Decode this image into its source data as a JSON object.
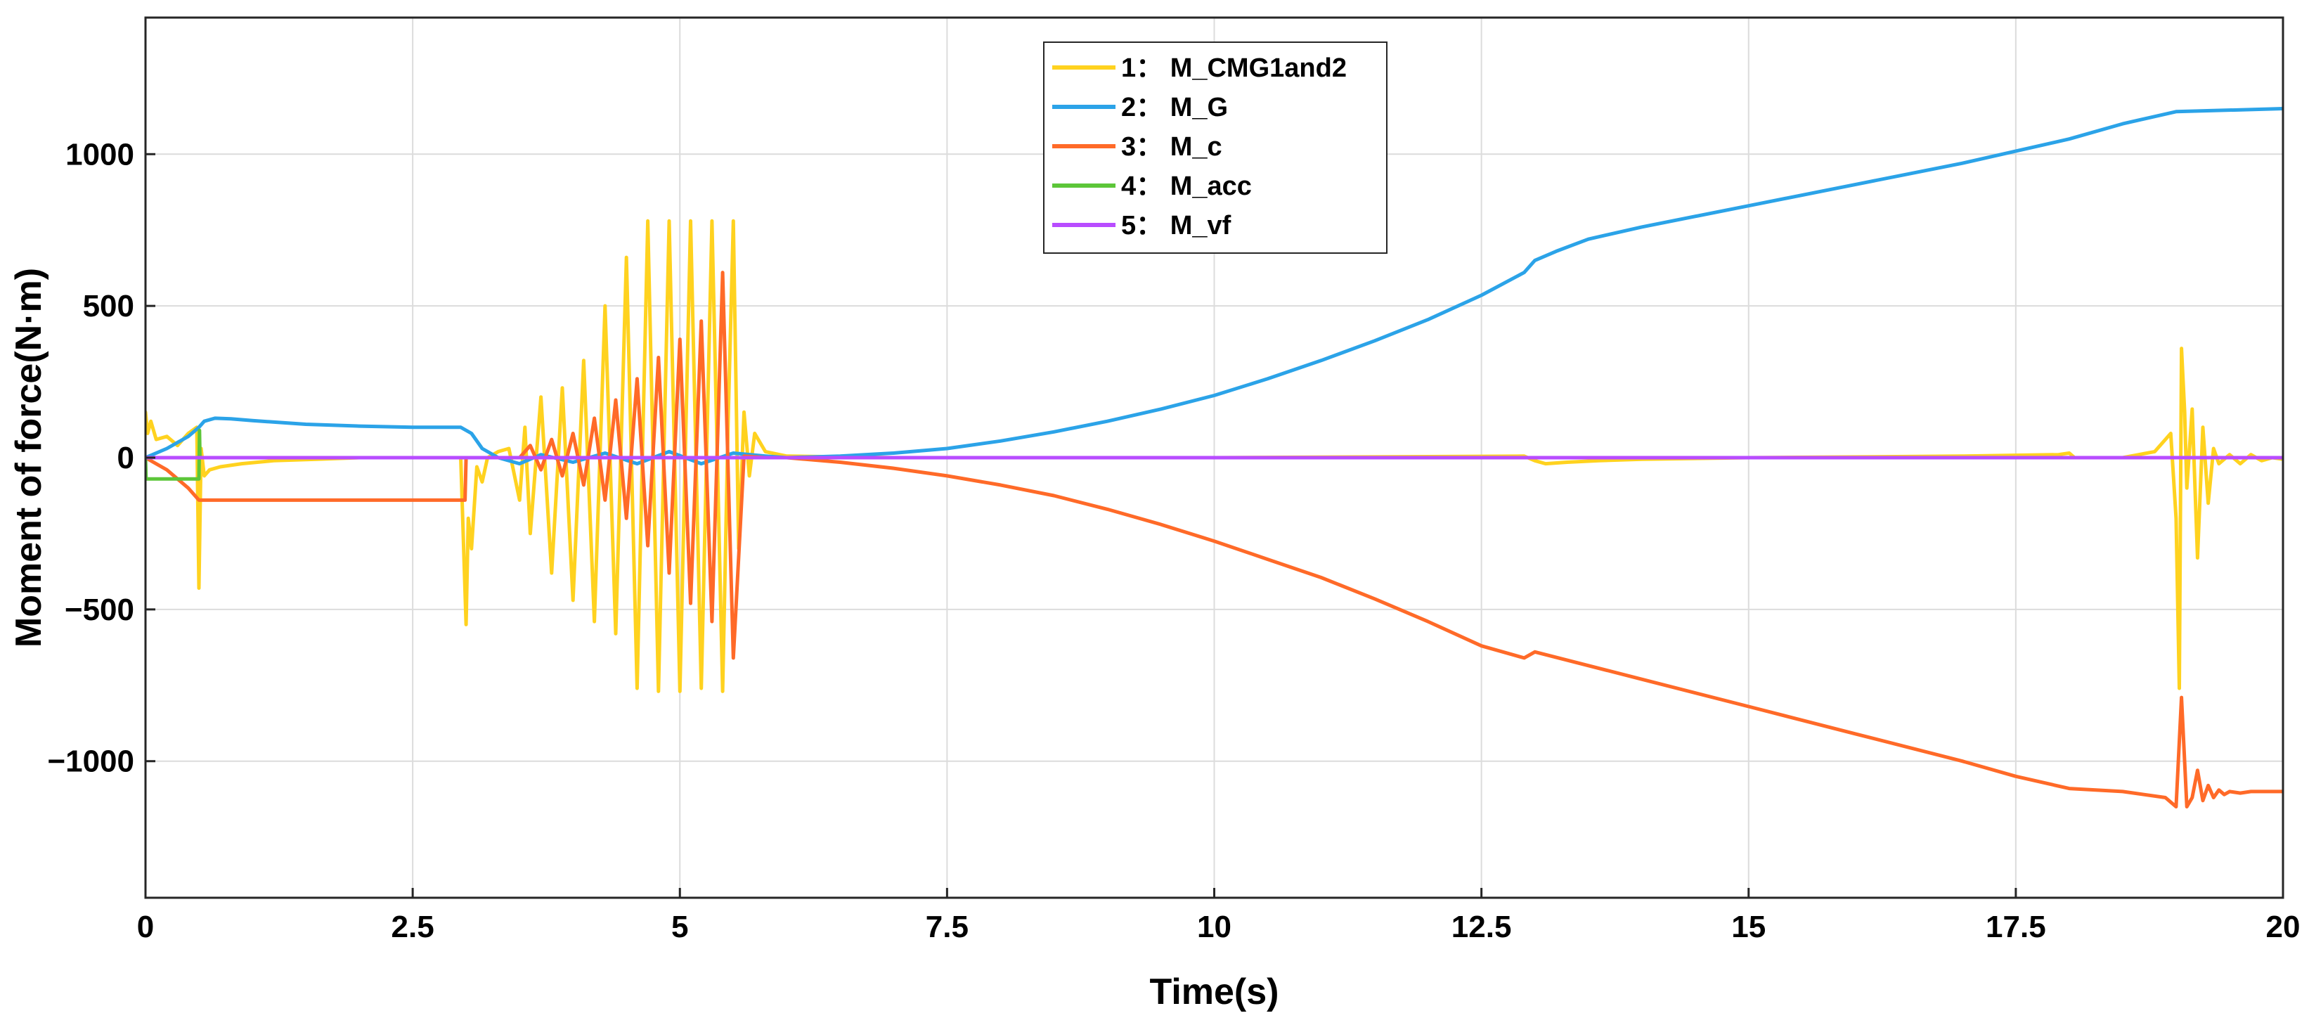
{
  "chart_data": {
    "type": "line",
    "title": "",
    "xlabel": "Time(s)",
    "ylabel": "Moment of force(N·m)",
    "xlim": [
      0,
      20
    ],
    "ylim": [
      -1450,
      1450
    ],
    "xticks": [
      0,
      2.5,
      5,
      7.5,
      10,
      12.5,
      15,
      17.5,
      20
    ],
    "xtick_labels": [
      "0",
      "2.5",
      "5",
      "7.5",
      "10",
      "12.5",
      "15",
      "17.5",
      "20"
    ],
    "yticks": [
      -1000,
      -500,
      0,
      500,
      1000
    ],
    "ytick_labels": [
      "−1000",
      "−500",
      "0",
      "500",
      "1000"
    ],
    "grid": true,
    "legend_position": "top-center",
    "series": [
      {
        "name": "1： M_CMG1and2",
        "color": "#FFD21F",
        "x": [
          0,
          0.02,
          0.05,
          0.1,
          0.2,
          0.3,
          0.4,
          0.48,
          0.5,
          0.52,
          0.55,
          0.6,
          0.7,
          0.9,
          1.2,
          1.6,
          2.0,
          2.5,
          2.95,
          3.0,
          3.02,
          3.05,
          3.1,
          3.15,
          3.2,
          3.3,
          3.4,
          3.5,
          3.55,
          3.6,
          3.7,
          3.8,
          3.9,
          4.0,
          4.1,
          4.2,
          4.3,
          4.4,
          4.5,
          4.6,
          4.7,
          4.8,
          4.9,
          5.0,
          5.1,
          5.2,
          5.3,
          5.4,
          5.45,
          5.5,
          5.55,
          5.6,
          5.65,
          5.7,
          5.8,
          6.0,
          7.0,
          10.0,
          12.9,
          13.0,
          13.1,
          13.3,
          13.6,
          14.0,
          15.0,
          17.0,
          17.9,
          18.0,
          18.05,
          18.5,
          18.8,
          18.95,
          19.0,
          19.03,
          19.05,
          19.08,
          19.1,
          19.15,
          19.2,
          19.25,
          19.3,
          19.35,
          19.4,
          19.5,
          19.6,
          19.7,
          19.8,
          19.9,
          20.0
        ],
        "y": [
          150,
          80,
          120,
          60,
          70,
          40,
          80,
          100,
          -430,
          30,
          -60,
          -40,
          -30,
          -20,
          -10,
          -5,
          0,
          0,
          0,
          -550,
          -200,
          -300,
          -30,
          -80,
          0,
          20,
          30,
          -140,
          100,
          -250,
          200,
          -380,
          230,
          -470,
          320,
          -540,
          500,
          -580,
          660,
          -760,
          780,
          -770,
          780,
          -770,
          780,
          -760,
          780,
          -770,
          100,
          780,
          -300,
          150,
          -60,
          80,
          20,
          5,
          0,
          0,
          5,
          -10,
          -20,
          -15,
          -10,
          -5,
          0,
          5,
          10,
          15,
          0,
          0,
          20,
          80,
          -200,
          -760,
          360,
          150,
          -100,
          160,
          -330,
          100,
          -150,
          30,
          -20,
          10,
          -20,
          10,
          -10,
          0,
          -5
        ]
      },
      {
        "name": "2： M_G",
        "color": "#2BA3E8",
        "x": [
          0,
          0.2,
          0.4,
          0.5,
          0.55,
          0.65,
          0.8,
          1.0,
          1.5,
          2.0,
          2.5,
          2.95,
          3.05,
          3.15,
          3.3,
          3.5,
          3.7,
          4.0,
          4.3,
          4.6,
          4.9,
          5.2,
          5.5,
          5.8,
          6.0,
          6.5,
          7.0,
          7.5,
          8.0,
          8.5,
          9.0,
          9.5,
          10.0,
          10.5,
          11.0,
          11.5,
          12.0,
          12.5,
          12.9,
          13.0,
          13.2,
          13.5,
          14.0,
          15.0,
          16.0,
          17.0,
          18.0,
          18.5,
          19.0,
          20.0
        ],
        "y": [
          0,
          30,
          70,
          100,
          120,
          130,
          128,
          122,
          110,
          104,
          100,
          100,
          80,
          30,
          0,
          -20,
          10,
          -15,
          15,
          -20,
          20,
          -20,
          15,
          5,
          0,
          5,
          15,
          30,
          55,
          85,
          120,
          160,
          205,
          260,
          320,
          385,
          455,
          535,
          610,
          650,
          680,
          720,
          760,
          830,
          900,
          970,
          1050,
          1100,
          1140,
          1150
        ]
      },
      {
        "name": "3： M_c",
        "color": "#FF6A28",
        "x": [
          0,
          0.2,
          0.4,
          0.5,
          0.55,
          1.0,
          2.0,
          2.99,
          3.0,
          3.5,
          3.6,
          3.7,
          3.8,
          3.9,
          4.0,
          4.1,
          4.2,
          4.3,
          4.4,
          4.5,
          4.6,
          4.7,
          4.8,
          4.9,
          5.0,
          5.1,
          5.2,
          5.3,
          5.4,
          5.5,
          5.6,
          5.8,
          6.0,
          6.5,
          7.0,
          7.5,
          8.0,
          8.5,
          9.0,
          9.5,
          10.0,
          10.5,
          11.0,
          11.5,
          12.0,
          12.5,
          12.9,
          13.0,
          14.0,
          15.0,
          16.0,
          17.0,
          17.5,
          18.0,
          18.5,
          18.9,
          19.0,
          19.05,
          19.1,
          19.15,
          19.2,
          19.25,
          19.3,
          19.35,
          19.4,
          19.45,
          19.5,
          19.6,
          19.7,
          19.8,
          20.0
        ],
        "y": [
          0,
          -40,
          -100,
          -140,
          -140,
          -140,
          -140,
          -140,
          0,
          0,
          40,
          -40,
          60,
          -60,
          80,
          -90,
          130,
          -140,
          190,
          -200,
          260,
          -290,
          330,
          -380,
          390,
          -480,
          450,
          -540,
          610,
          -660,
          5,
          0,
          0,
          -15,
          -35,
          -60,
          -90,
          -125,
          -170,
          -220,
          -275,
          -335,
          -395,
          -465,
          -540,
          -620,
          -660,
          -640,
          -730,
          -820,
          -910,
          -1000,
          -1050,
          -1090,
          -1100,
          -1120,
          -1150,
          -790,
          -1150,
          -1120,
          -1030,
          -1130,
          -1080,
          -1120,
          -1095,
          -1110,
          -1100,
          -1105,
          -1100,
          -1100,
          -1100
        ]
      },
      {
        "name": "4： M_acc",
        "color": "#5CC639",
        "x": [
          0,
          0.005,
          0.5,
          0.505,
          0.51,
          20
        ],
        "y": [
          0,
          -70,
          -70,
          90,
          0,
          0
        ]
      },
      {
        "name": "5： M_vf",
        "color": "#B84CFF",
        "x": [
          0,
          20
        ],
        "y": [
          0,
          0
        ]
      }
    ]
  }
}
